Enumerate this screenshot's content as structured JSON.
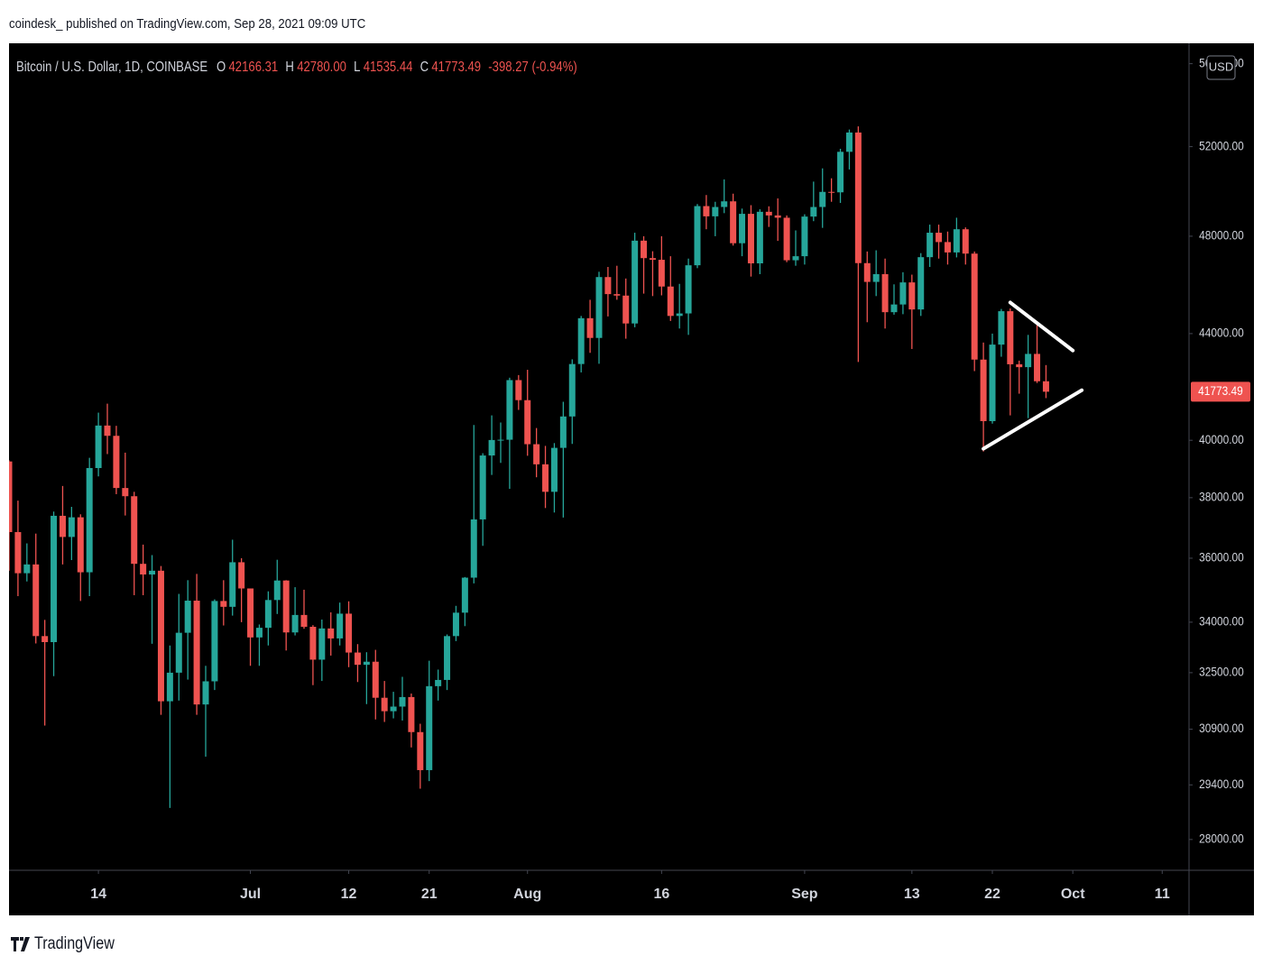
{
  "header": {
    "text": "coindesk_ published on TradingView.com, Sep 28, 2021 09:09 UTC"
  },
  "footer": {
    "brand": "TradingView"
  },
  "chart_data": {
    "type": "candlestick",
    "symbol": "Bitcoin / U.S. Dollar, 1D, COINBASE",
    "ohlc_legend": [
      {
        "label": "O",
        "value": "42166.31"
      },
      {
        "label": "H",
        "value": "42780.00"
      },
      {
        "label": "L",
        "value": "41535.44"
      },
      {
        "label": "C",
        "value": "41773.49"
      }
    ],
    "change": "-398.27 (-0.94%)",
    "currency": "USD",
    "last_price_label": "41773.49",
    "up_color": "#26a69a",
    "down_color": "#ef5350",
    "log_scale": true,
    "grid": false,
    "xlim": [
      "2021-06-04",
      "2021-10-14"
    ],
    "xticks": [
      {
        "value": "2021-06-14",
        "label": "14"
      },
      {
        "value": "2021-07-01",
        "label": "Jul"
      },
      {
        "value": "2021-07-12",
        "label": "12"
      },
      {
        "value": "2021-07-21",
        "label": "21"
      },
      {
        "value": "2021-08-01",
        "label": "Aug"
      },
      {
        "value": "2021-08-16",
        "label": "16"
      },
      {
        "value": "2021-09-01",
        "label": "Sep"
      },
      {
        "value": "2021-09-13",
        "label": "13"
      },
      {
        "value": "2021-09-22",
        "label": "22"
      },
      {
        "value": "2021-10-01",
        "label": "Oct"
      },
      {
        "value": "2021-10-11",
        "label": "11"
      }
    ],
    "ylim": [
      27240,
      57030
    ],
    "yticks": [
      {
        "value": 28000,
        "label": "28000.00"
      },
      {
        "value": 29400,
        "label": "29400.00"
      },
      {
        "value": 30900,
        "label": "30900.00"
      },
      {
        "value": 32500,
        "label": "32500.00"
      },
      {
        "value": 34000,
        "label": "34000.00"
      },
      {
        "value": 36000,
        "label": "36000.00"
      },
      {
        "value": 38000,
        "label": "38000.00"
      },
      {
        "value": 40000,
        "label": "40000.00"
      },
      {
        "value": 44000,
        "label": "44000.00"
      },
      {
        "value": 48000,
        "label": "48000.00"
      },
      {
        "value": 52000,
        "label": "52000.00"
      },
      {
        "value": 56000,
        "label": "56000.00"
      }
    ],
    "x": [
      "2021-06-04",
      "2021-06-05",
      "2021-06-06",
      "2021-06-07",
      "2021-06-08",
      "2021-06-09",
      "2021-06-10",
      "2021-06-11",
      "2021-06-12",
      "2021-06-13",
      "2021-06-14",
      "2021-06-15",
      "2021-06-16",
      "2021-06-17",
      "2021-06-18",
      "2021-06-19",
      "2021-06-20",
      "2021-06-21",
      "2021-06-22",
      "2021-06-23",
      "2021-06-24",
      "2021-06-25",
      "2021-06-26",
      "2021-06-27",
      "2021-06-28",
      "2021-06-29",
      "2021-06-30",
      "2021-07-01",
      "2021-07-02",
      "2021-07-03",
      "2021-07-04",
      "2021-07-05",
      "2021-07-06",
      "2021-07-07",
      "2021-07-08",
      "2021-07-09",
      "2021-07-10",
      "2021-07-11",
      "2021-07-12",
      "2021-07-13",
      "2021-07-14",
      "2021-07-15",
      "2021-07-16",
      "2021-07-17",
      "2021-07-18",
      "2021-07-19",
      "2021-07-20",
      "2021-07-21",
      "2021-07-22",
      "2021-07-23",
      "2021-07-24",
      "2021-07-25",
      "2021-07-26",
      "2021-07-27",
      "2021-07-28",
      "2021-07-29",
      "2021-07-30",
      "2021-07-31",
      "2021-08-01",
      "2021-08-02",
      "2021-08-03",
      "2021-08-04",
      "2021-08-05",
      "2021-08-06",
      "2021-08-07",
      "2021-08-08",
      "2021-08-09",
      "2021-08-10",
      "2021-08-11",
      "2021-08-12",
      "2021-08-13",
      "2021-08-14",
      "2021-08-15",
      "2021-08-16",
      "2021-08-17",
      "2021-08-18",
      "2021-08-19",
      "2021-08-20",
      "2021-08-21",
      "2021-08-22",
      "2021-08-23",
      "2021-08-24",
      "2021-08-25",
      "2021-08-26",
      "2021-08-27",
      "2021-08-28",
      "2021-08-29",
      "2021-08-30",
      "2021-08-31",
      "2021-09-01",
      "2021-09-02",
      "2021-09-03",
      "2021-09-04",
      "2021-09-05",
      "2021-09-06",
      "2021-09-07",
      "2021-09-08",
      "2021-09-09",
      "2021-09-10",
      "2021-09-11",
      "2021-09-12",
      "2021-09-13",
      "2021-09-14",
      "2021-09-15",
      "2021-09-16",
      "2021-09-17",
      "2021-09-18",
      "2021-09-19",
      "2021-09-20",
      "2021-09-21",
      "2021-09-22",
      "2021-09-23",
      "2021-09-24",
      "2021-09-25",
      "2021-09-26",
      "2021-09-27",
      "2021-09-28"
    ],
    "open": [
      39250,
      36850,
      35520,
      35800,
      33580,
      33400,
      37390,
      36690,
      37340,
      35550,
      39020,
      40530,
      40160,
      38330,
      38050,
      35820,
      35480,
      35600,
      31680,
      32500,
      33680,
      34660,
      31590,
      32250,
      34650,
      34470,
      35870,
      35040,
      33540,
      33830,
      34680,
      35290,
      33690,
      34220,
      33860,
      32880,
      33810,
      33510,
      34260,
      33090,
      32730,
      32820,
      31780,
      31400,
      31530,
      31800,
      30820,
      29790,
      32110,
      32290,
      33580,
      34290,
      35380,
      37270,
      39460,
      40010,
      40020,
      42210,
      41460,
      39860,
      39150,
      38200,
      39730,
      40860,
      42820,
      44610,
      43830,
      46280,
      45580,
      45520,
      44400,
      47810,
      47070,
      47000,
      45890,
      44700,
      44800,
      46770,
      49310,
      48860,
      49270,
      49520,
      47700,
      48970,
      46850,
      49060,
      48900,
      48800,
      46980,
      47150,
      48850,
      49270,
      49940,
      49920,
      51760,
      52660,
      46860,
      46080,
      46400,
      44850,
      45160,
      46060,
      44960,
      47110,
      48150,
      47750,
      47310,
      48300,
      47260,
      42990,
      40690,
      43570,
      44890,
      42810,
      42700,
      43210,
      42166.31
    ],
    "high": [
      39290,
      37900,
      36480,
      36800,
      34070,
      37530,
      38400,
      37690,
      37440,
      39380,
      41000,
      41330,
      40520,
      39560,
      38200,
      36440,
      36100,
      35750,
      33300,
      34870,
      35300,
      35500,
      32700,
      34700,
      35300,
      36600,
      36000,
      35000,
      33930,
      34950,
      35950,
      35300,
      35080,
      35000,
      33910,
      34080,
      34300,
      34600,
      34640,
      33340,
      33100,
      33170,
      32260,
      31950,
      32380,
      31900,
      31050,
      32850,
      32590,
      33630,
      34500,
      35400,
      40550,
      39540,
      40900,
      40640,
      42300,
      42400,
      42600,
      40440,
      39800,
      39900,
      41400,
      43000,
      44700,
      45350,
      46500,
      46700,
      46750,
      46220,
      48150,
      48000,
      47360,
      48000,
      47150,
      46000,
      47050,
      49400,
      49800,
      49500,
      50500,
      49860,
      49200,
      49350,
      49170,
      49300,
      49650,
      48900,
      48250,
      48950,
      50400,
      51000,
      50550,
      51900,
      52800,
      52950,
      47350,
      47400,
      47050,
      45980,
      46480,
      46380,
      47280,
      48500,
      48500,
      48200,
      48800,
      48380,
      47350,
      43650,
      44000,
      44980,
      45000,
      42950,
      43950,
      44350,
      42780
    ],
    "low": [
      35600,
      34800,
      35260,
      33360,
      31000,
      32400,
      35800,
      35940,
      34650,
      34800,
      38730,
      39510,
      38120,
      37400,
      34830,
      34830,
      33350,
      31300,
      28800,
      31700,
      32300,
      31300,
      30150,
      32000,
      33900,
      34200,
      34000,
      32700,
      32700,
      33300,
      34250,
      33150,
      33600,
      33800,
      32140,
      32260,
      33000,
      33300,
      32660,
      32230,
      31600,
      31170,
      31100,
      31200,
      31140,
      30400,
      29300,
      29500,
      31700,
      32000,
      33430,
      33880,
      35200,
      36400,
      38780,
      39200,
      38300,
      41100,
      39450,
      38700,
      37650,
      37500,
      37330,
      39870,
      42500,
      43250,
      42830,
      44680,
      45350,
      43800,
      44250,
      45600,
      45500,
      45530,
      44500,
      44200,
      43950,
      46650,
      48300,
      48000,
      49000,
      47600,
      47150,
      46300,
      46400,
      48400,
      47800,
      46900,
      46750,
      46800,
      48650,
      48360,
      49500,
      49450,
      50950,
      42900,
      44450,
      45500,
      44200,
      44750,
      44770,
      43400,
      44700,
      46700,
      47050,
      46800,
      47100,
      46800,
      42550,
      39600,
      40600,
      43100,
      40900,
      41700,
      40800,
      42100,
      41535.44
    ],
    "close": [
      36850,
      35520,
      35800,
      33580,
      33400,
      37390,
      36690,
      37340,
      35550,
      39020,
      40530,
      40160,
      38330,
      38050,
      35820,
      35480,
      35600,
      31680,
      32500,
      33680,
      34660,
      31590,
      32250,
      34650,
      34470,
      35870,
      35040,
      33540,
      33830,
      34680,
      35290,
      33690,
      34220,
      33860,
      32880,
      33810,
      33510,
      34260,
      33090,
      32730,
      32820,
      31780,
      31400,
      31530,
      31800,
      30820,
      29790,
      32110,
      32290,
      33580,
      34290,
      35380,
      37270,
      39460,
      40010,
      40020,
      42210,
      41460,
      39860,
      39150,
      38200,
      39730,
      40860,
      42820,
      44610,
      43830,
      46280,
      45580,
      45520,
      44400,
      47810,
      47070,
      47000,
      45890,
      44700,
      44800,
      46770,
      49310,
      48860,
      49270,
      49520,
      47700,
      48970,
      46850,
      49060,
      48900,
      48800,
      46980,
      47150,
      48850,
      49270,
      49940,
      49920,
      51760,
      52660,
      46860,
      46080,
      46400,
      44850,
      45160,
      46060,
      44960,
      47110,
      48150,
      47750,
      47310,
      48300,
      47260,
      42990,
      40690,
      43570,
      44890,
      42810,
      42700,
      43210,
      42166.31,
      41773.49
    ],
    "drawings": [
      {
        "color": "#ffffff",
        "x": [
          "2021-09-24",
          "2021-10-01"
        ],
        "y": [
          45240,
          43340
        ]
      },
      {
        "color": "#ffffff",
        "x": [
          "2021-09-21",
          "2021-10-02"
        ],
        "y": [
          39700,
          41830
        ]
      }
    ]
  }
}
